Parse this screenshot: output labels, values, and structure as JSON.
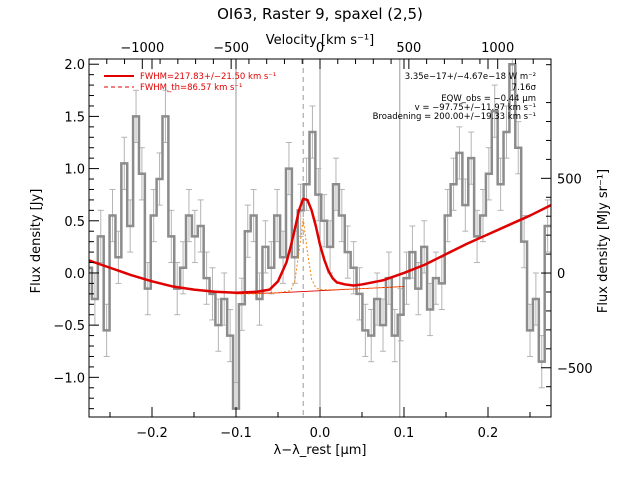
{
  "chart_data": {
    "type": "line",
    "title": "OI63, Raster 9, spaxel (2,5)",
    "xlabel": "λ−λ_rest [μm]",
    "ylabel": "Flux density [Jy]",
    "x2label": "Velocity [km s⁻¹]",
    "y2label": "Flux density [MJy sr⁻¹]",
    "xlim": [
      -0.275,
      0.275
    ],
    "ylim": [
      -1.38,
      2.05
    ],
    "x2lim": [
      -1300,
      1300
    ],
    "y2lim": [
      -760,
      1130
    ],
    "x_ticks": [
      -0.2,
      -0.1,
      0.0,
      0.1,
      0.2
    ],
    "x_tick_labels": [
      "−0.2",
      "−0.1",
      "0.0",
      "0.1",
      "0.2"
    ],
    "y_ticks": [
      -1.0,
      -0.5,
      0.0,
      0.5,
      1.0,
      1.5,
      2.0
    ],
    "y_tick_labels": [
      "−1.0",
      "−0.5",
      "0.0",
      "0.5",
      "1.0",
      "1.5",
      "2.0"
    ],
    "x2_ticks": [
      -1000,
      -500,
      0,
      500,
      1000
    ],
    "x2_tick_labels": [
      "−1000",
      "−500",
      "0",
      "500",
      "1000"
    ],
    "y2_ticks": [
      -500,
      0,
      500
    ],
    "y2_tick_labels": [
      "−500",
      "0",
      "500"
    ],
    "vlines_solid": [
      -0.1,
      0.0,
      0.095
    ],
    "vline_dashed": -0.02,
    "legend": {
      "placement": "top-left",
      "entries": [
        {
          "label": "FWHM=217.83+/−21.50 km s⁻¹",
          "style": "solid",
          "color": "#e00000"
        },
        {
          "label": "FWHM_th=86.57 km s⁻¹",
          "style": "dashed",
          "color": "#e00000"
        }
      ]
    },
    "annotations": [
      "3.35e−17+/−4.67e−18 W m⁻²",
      "7.16σ",
      "EQW_obs = −0.44 μm",
      "v = −97.75+/−11.97 km s⁻¹",
      "Broadening = 200.00+/−19.33 km s⁻¹"
    ],
    "colors": {
      "data": "#8c8c8c",
      "errorbar": "#b4b4b4",
      "fit": "#e00000",
      "thermal": "#ff8000",
      "vline": "#9a9a9a",
      "axis": "#000000"
    },
    "series": [
      {
        "name": "Flux density",
        "style": "step",
        "x": [
          -0.275,
          -0.268,
          -0.261,
          -0.254,
          -0.247,
          -0.24,
          -0.233,
          -0.226,
          -0.219,
          -0.212,
          -0.205,
          -0.198,
          -0.191,
          -0.184,
          -0.177,
          -0.17,
          -0.163,
          -0.156,
          -0.149,
          -0.142,
          -0.135,
          -0.128,
          -0.121,
          -0.114,
          -0.107,
          -0.1,
          -0.093,
          -0.086,
          -0.079,
          -0.072,
          -0.065,
          -0.058,
          -0.051,
          -0.044,
          -0.037,
          -0.03,
          -0.023,
          -0.016,
          -0.009,
          -0.002,
          0.005,
          0.012,
          0.019,
          0.026,
          0.033,
          0.04,
          0.047,
          0.054,
          0.061,
          0.068,
          0.075,
          0.082,
          0.089,
          0.096,
          0.103,
          0.11,
          0.117,
          0.124,
          0.131,
          0.138,
          0.145,
          0.152,
          0.159,
          0.166,
          0.173,
          0.18,
          0.187,
          0.194,
          0.201,
          0.208,
          0.215,
          0.222,
          0.229,
          0.236,
          0.243,
          0.25,
          0.257,
          0.264,
          0.271
        ],
        "y": [
          0.05,
          -0.25,
          0.35,
          -0.55,
          0.55,
          0.15,
          1.05,
          0.45,
          1.5,
          0.95,
          -0.15,
          0.55,
          0.9,
          1.5,
          0.35,
          -0.15,
          0.05,
          0.55,
          0.35,
          0.45,
          -0.05,
          -0.2,
          -0.5,
          -0.25,
          -0.6,
          -1.3,
          -0.3,
          0.4,
          0.55,
          -0.25,
          0.25,
          0.05,
          0.55,
          0.15,
          1.0,
          0.15,
          0.6,
          0.85,
          1.35,
          0.75,
          0.5,
          0.25,
          0.85,
          0.55,
          0.2,
          0.05,
          -0.2,
          -0.55,
          -0.6,
          -0.25,
          -0.5,
          -0.05,
          -0.6,
          -0.4,
          -0.05,
          0.2,
          -0.15,
          0.25,
          -0.35,
          -0.05,
          -0.1,
          0.55,
          0.85,
          1.15,
          0.65,
          1.1,
          0.35,
          0.55,
          0.95,
          1.55,
          0.85,
          1.35,
          2.0,
          1.2,
          0.3,
          -0.55,
          -0.25,
          -0.85,
          0.45
        ],
        "err": [
          0.25,
          0.25,
          0.25,
          0.25,
          0.25,
          0.25,
          0.25,
          0.25,
          0.25,
          0.25,
          0.25,
          0.25,
          0.25,
          0.25,
          0.25,
          0.25,
          0.25,
          0.25,
          0.25,
          0.25,
          0.25,
          0.25,
          0.25,
          0.25,
          0.25,
          0.25,
          0.25,
          0.25,
          0.25,
          0.25,
          0.25,
          0.25,
          0.25,
          0.25,
          0.25,
          0.25,
          0.25,
          0.25,
          0.25,
          0.25,
          0.25,
          0.25,
          0.25,
          0.25,
          0.25,
          0.25,
          0.25,
          0.25,
          0.25,
          0.25,
          0.25,
          0.25,
          0.25,
          0.25,
          0.25,
          0.25,
          0.25,
          0.25,
          0.25,
          0.25,
          0.25,
          0.25,
          0.25,
          0.25,
          0.25,
          0.25,
          0.25,
          0.25,
          0.25,
          0.25,
          0.25,
          0.25,
          0.25,
          0.25,
          0.25,
          0.25,
          0.25,
          0.25,
          0.25
        ]
      },
      {
        "name": "FWHM=217.83+/−21.50 km s⁻¹",
        "style": "line",
        "x": [
          -0.275,
          -0.25,
          -0.225,
          -0.2,
          -0.175,
          -0.15,
          -0.125,
          -0.1,
          -0.075,
          -0.06,
          -0.05,
          -0.04,
          -0.035,
          -0.03,
          -0.025,
          -0.02,
          -0.015,
          -0.01,
          -0.005,
          0.0,
          0.005,
          0.01,
          0.015,
          0.02,
          0.03,
          0.04,
          0.05,
          0.075,
          0.1,
          0.125,
          0.15,
          0.175,
          0.2,
          0.225,
          0.25,
          0.275
        ],
        "y": [
          0.12,
          0.05,
          -0.02,
          -0.08,
          -0.13,
          -0.16,
          -0.18,
          -0.19,
          -0.18,
          -0.16,
          -0.08,
          0.1,
          0.25,
          0.42,
          0.6,
          0.71,
          0.7,
          0.6,
          0.45,
          0.27,
          0.13,
          0.02,
          -0.05,
          -0.09,
          -0.11,
          -0.12,
          -0.11,
          -0.07,
          0.0,
          0.08,
          0.18,
          0.28,
          0.37,
          0.46,
          0.55,
          0.65
        ]
      },
      {
        "name": "FWHM_th=86.57 km s⁻¹",
        "style": "line",
        "x": [
          -0.1,
          -0.075,
          -0.05,
          -0.035,
          -0.03,
          -0.025,
          -0.02,
          -0.015,
          -0.01,
          -0.005,
          0.0,
          0.015,
          0.05,
          0.075,
          0.1
        ],
        "y": [
          -0.2,
          -0.2,
          -0.19,
          -0.17,
          -0.08,
          0.2,
          0.52,
          0.2,
          -0.06,
          -0.14,
          -0.16,
          -0.16,
          -0.15,
          -0.14,
          -0.13
        ]
      },
      {
        "name": "baseline",
        "style": "line",
        "x": [
          -0.1,
          -0.05,
          0.0,
          0.05,
          0.1
        ],
        "y": [
          -0.2,
          -0.19,
          -0.17,
          -0.15,
          -0.13
        ]
      }
    ]
  }
}
